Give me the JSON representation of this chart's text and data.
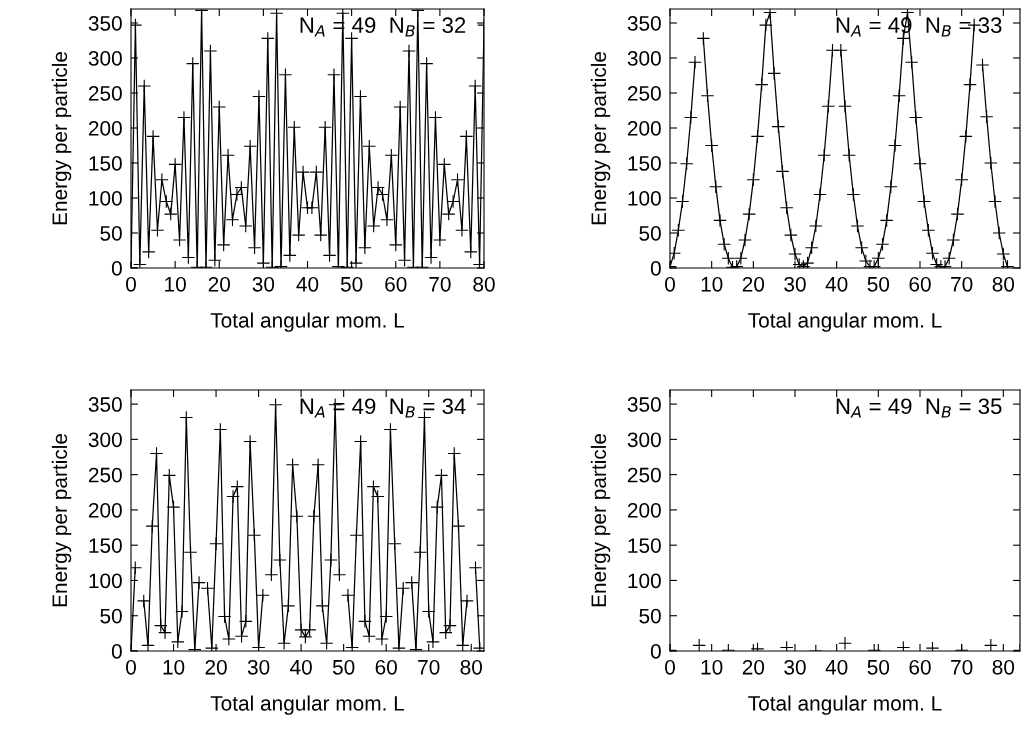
{
  "chart_data": [
    {
      "type": "line",
      "xlabel": "Total angular mom. L",
      "ylabel": "Energy per particle",
      "annotations": [
        "N$_{A}$ = 49  N$_{B}$ = 32"
      ],
      "marker": "cross",
      "line_style": "solid",
      "grid": false,
      "x": [
        0,
        1,
        2,
        3,
        4,
        5,
        6,
        7,
        8,
        9,
        10,
        11,
        12,
        13,
        14,
        15,
        16,
        17,
        18,
        19,
        20,
        21,
        22,
        23,
        24,
        25,
        26,
        27,
        28,
        29,
        30,
        31,
        32,
        33,
        34,
        35,
        36,
        37,
        38,
        39,
        40,
        41,
        42,
        43,
        44,
        45,
        46,
        47,
        48,
        49,
        50,
        51,
        52,
        53,
        54,
        55,
        56,
        57,
        58,
        59,
        60,
        61,
        62,
        63,
        64,
        65,
        66,
        67,
        68,
        69,
        70,
        71,
        72,
        73,
        74,
        75,
        76,
        77,
        78,
        79,
        80
      ],
      "series": [
        {
          "color": "#000000",
          "values": [
            0,
            347,
            5,
            260,
            23,
            188,
            54,
            126,
            95,
            77,
            148,
            40,
            215,
            15,
            292,
            1,
            368,
            1,
            310,
            11,
            230,
            33,
            161,
            69,
            105,
            115,
            60,
            174,
            29,
            245,
            7,
            328,
            1,
            364,
            2,
            276,
            18,
            201,
            47,
            137,
            86,
            86,
            137,
            47,
            201,
            18,
            276,
            2,
            364,
            1,
            328,
            7,
            245,
            29,
            174,
            60,
            115,
            105,
            69,
            161,
            33,
            230,
            11,
            310,
            1,
            368,
            1,
            292,
            15,
            215,
            40,
            148,
            77,
            95,
            126,
            54,
            188,
            23,
            260,
            5,
            347
          ]
        }
      ],
      "xlim": [
        0,
        80
      ],
      "ylim": [
        0,
        370
      ],
      "xticks": [
        0,
        10,
        20,
        30,
        40,
        50,
        60,
        70,
        80
      ],
      "yticks": [
        0,
        50,
        100,
        150,
        200,
        250,
        300,
        350
      ]
    },
    {
      "type": "line",
      "xlabel": "Total angular mom. L",
      "ylabel": "Energy per particle",
      "annotations": [
        "N$_{A}$ = 49  N$_{B}$ = 33"
      ],
      "marker": "cross",
      "line_style": "solid",
      "grid": false,
      "x": [
        0,
        1,
        2,
        3,
        4,
        5,
        6,
        7,
        8,
        9,
        10,
        11,
        12,
        13,
        14,
        15,
        16,
        17,
        18,
        19,
        20,
        21,
        22,
        23,
        24,
        25,
        26,
        27,
        28,
        29,
        30,
        31,
        32,
        33,
        34,
        35,
        36,
        37,
        38,
        39,
        40,
        41,
        42,
        43,
        44,
        45,
        46,
        47,
        48,
        49,
        50,
        51,
        52,
        53,
        54,
        55,
        56,
        57,
        58,
        59,
        60,
        61,
        62,
        63,
        64,
        65,
        66,
        67,
        68,
        69,
        70,
        71,
        72,
        73,
        74,
        75,
        76,
        77,
        78,
        79,
        80,
        81
      ],
      "series": [
        {
          "color": "#000000",
          "values": [
            2,
            21,
            54,
            95,
            149,
            215,
            294,
            null,
            328,
            246,
            175,
            116,
            68,
            34,
            14,
            1,
            2,
            14,
            40,
            77,
            126,
            188,
            262,
            347,
            365,
            278,
            202,
            138,
            86,
            47,
            20,
            5,
            2,
            7,
            29,
            60,
            105,
            161,
            231,
            311,
            null,
            311,
            231,
            161,
            105,
            60,
            29,
            10,
            2,
            2,
            14,
            34,
            68,
            116,
            175,
            246,
            328,
            365,
            294,
            215,
            149,
            95,
            54,
            21,
            5,
            2,
            2,
            14,
            40,
            77,
            126,
            188,
            262,
            347,
            null,
            290,
            216,
            150,
            95,
            50,
            20,
            2
          ]
        }
      ],
      "xlim": [
        0,
        84
      ],
      "ylim": [
        0,
        370
      ],
      "xticks": [
        0,
        10,
        20,
        30,
        40,
        50,
        60,
        70,
        80
      ],
      "yticks": [
        0,
        50,
        100,
        150,
        200,
        250,
        300,
        350
      ]
    },
    {
      "type": "line",
      "xlabel": "Total angular mom. L",
      "ylabel": "Energy per particle",
      "annotations": [
        "N$_{A}$ = 49  N$_{B}$ = 34"
      ],
      "marker": "cross",
      "line_style": "solid",
      "grid": false,
      "x": [
        0,
        1,
        2,
        3,
        4,
        5,
        6,
        7,
        8,
        9,
        10,
        11,
        12,
        13,
        14,
        15,
        16,
        17,
        18,
        19,
        20,
        21,
        22,
        23,
        24,
        25,
        26,
        27,
        28,
        29,
        30,
        31,
        32,
        33,
        34,
        35,
        36,
        37,
        38,
        39,
        40,
        41,
        42,
        43,
        44,
        45,
        46,
        47,
        48,
        49,
        50,
        51,
        52,
        53,
        54,
        55,
        56,
        57,
        58,
        59,
        60,
        61,
        62,
        63,
        64,
        65,
        66,
        67,
        68,
        69,
        70,
        71,
        72,
        73,
        74,
        75,
        76,
        77,
        78,
        79,
        80,
        81,
        82
      ],
      "series": [
        {
          "color": "#000000",
          "values": [
            0,
            118,
            null,
            71,
            8,
            177,
            280,
            36,
            26,
            249,
            204,
            13,
            56,
            331,
            140,
            2,
            97,
            null,
            89,
            4,
            152,
            314,
            49,
            17,
            219,
            233,
            21,
            42,
            297,
            164,
            5,
            79,
            null,
            108,
            349,
            129,
            11,
            64,
            264,
            191,
            30,
            20,
            30,
            191,
            264,
            64,
            11,
            129,
            349,
            108,
            null,
            79,
            5,
            164,
            297,
            42,
            21,
            233,
            219,
            17,
            49,
            314,
            152,
            4,
            89,
            null,
            97,
            2,
            140,
            331,
            56,
            13,
            204,
            249,
            26,
            36,
            280,
            177,
            8,
            71,
            null,
            118,
            4
          ]
        }
      ],
      "xlim": [
        0,
        83
      ],
      "ylim": [
        0,
        370
      ],
      "xticks": [
        0,
        10,
        20,
        30,
        40,
        50,
        60,
        70,
        80
      ],
      "yticks": [
        0,
        50,
        100,
        150,
        200,
        250,
        300,
        350
      ]
    },
    {
      "type": "scatter",
      "xlabel": "Total angular mom. L",
      "ylabel": "Energy per particle",
      "annotations": [
        "N$_{A}$ = 49  N$_{B}$ = 35"
      ],
      "marker": "cross",
      "grid": false,
      "x": [
        0,
        7,
        14,
        21,
        28,
        35,
        42,
        49,
        56,
        63,
        70,
        77,
        84
      ],
      "series": [
        {
          "color": "#000000",
          "values": [
            1,
            8,
            1,
            3,
            5,
            0,
            11,
            1,
            5,
            4,
            1,
            8,
            1
          ]
        }
      ],
      "xlim": [
        0,
        84
      ],
      "ylim": [
        0,
        370
      ],
      "xticks": [
        0,
        10,
        20,
        30,
        40,
        50,
        60,
        70,
        80
      ],
      "yticks": [
        0,
        50,
        100,
        150,
        200,
        250,
        300,
        350
      ]
    }
  ]
}
